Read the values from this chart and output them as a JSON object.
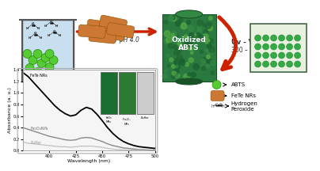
{
  "bg_color": "#ffffff",
  "arrow_color": "#cc2200",
  "reaction_label": "30 °C / pH 4.0",
  "uvvis_label": "Uv - Vis",
  "nm_label": "300 – 500 nm",
  "oxidized_label": "Oxidized\nABTS",
  "wavelengths": [
    375,
    380,
    385,
    390,
    395,
    400,
    405,
    410,
    415,
    420,
    425,
    430,
    435,
    440,
    445,
    450,
    455,
    460,
    465,
    470,
    475,
    480,
    485,
    490,
    495,
    500
  ],
  "fete_nrs": [
    1.35,
    1.28,
    1.18,
    1.08,
    0.98,
    0.88,
    0.78,
    0.7,
    0.64,
    0.6,
    0.62,
    0.7,
    0.75,
    0.72,
    0.63,
    0.52,
    0.4,
    0.3,
    0.22,
    0.16,
    0.12,
    0.09,
    0.07,
    0.06,
    0.05,
    0.04
  ],
  "fe3o4_nps": [
    0.4,
    0.37,
    0.34,
    0.31,
    0.28,
    0.25,
    0.23,
    0.21,
    0.19,
    0.18,
    0.19,
    0.22,
    0.23,
    0.22,
    0.19,
    0.16,
    0.12,
    0.09,
    0.07,
    0.05,
    0.04,
    0.03,
    0.02,
    0.02,
    0.01,
    0.01
  ],
  "buffer": [
    0.15,
    0.13,
    0.12,
    0.11,
    0.1,
    0.09,
    0.08,
    0.07,
    0.07,
    0.06,
    0.07,
    0.08,
    0.08,
    0.08,
    0.07,
    0.06,
    0.04,
    0.03,
    0.02,
    0.02,
    0.01,
    0.01,
    0.01,
    0.01,
    0.0,
    0.0
  ],
  "beaker_fill": "#c8dff0",
  "beaker_edge": "#555555",
  "cylinder_body": "#2a7a40",
  "cylinder_top": "#338844",
  "cylinder_dark": "#1a5228",
  "plate_fill": "#e8f0e0",
  "plate_edge": "#446644",
  "plate_dot": "#33aa44",
  "abts_color": "#55cc33",
  "rod_color": "#cc7733",
  "rod_edge": "#885500"
}
